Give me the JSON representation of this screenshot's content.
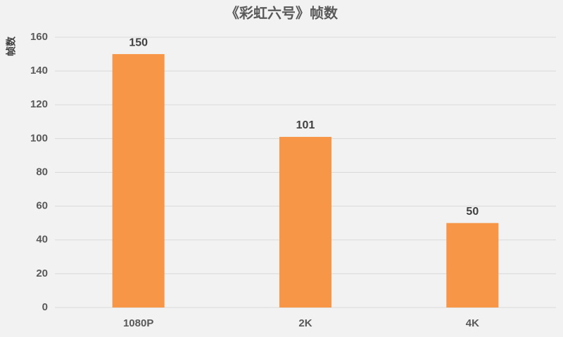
{
  "chart_data": {
    "type": "bar",
    "title": "《彩虹六号》帧数",
    "y_label": "帧数",
    "categories": [
      "1080P",
      "2K",
      "4K"
    ],
    "values": [
      150,
      101,
      50
    ],
    "color": "#f79646",
    "ylim": [
      0,
      160
    ],
    "yticks": [
      0,
      20,
      40,
      60,
      80,
      100,
      120,
      140,
      160
    ],
    "grid": true,
    "data_labels": true
  }
}
